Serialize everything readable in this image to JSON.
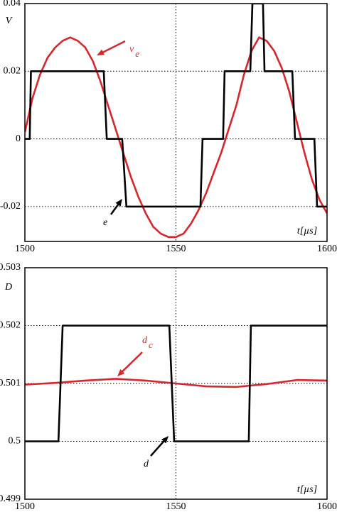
{
  "chart_data": [
    {
      "type": "line",
      "xlabel": "t[µs]",
      "ylabel": "V",
      "xlim": [
        1500,
        1600
      ],
      "xticks": [
        1500,
        1550,
        1600
      ],
      "ylim": [
        -0.0303,
        0.04
      ],
      "yticks": [
        -0.02,
        0,
        0.02,
        0.04
      ],
      "grid": true,
      "series": [
        {
          "color": "#d9262b",
          "x": [
            1500,
            1502.5,
            1505,
            1507.5,
            1510,
            1512.5,
            1515,
            1517.5,
            1520,
            1522.5,
            1525,
            1527.5,
            1530,
            1532.5,
            1535,
            1537.5,
            1540,
            1542.5,
            1545,
            1547.5,
            1550,
            1552.5,
            1555,
            1557.5,
            1560,
            1562.5,
            1565,
            1567.5,
            1570,
            1572.5,
            1575,
            1577.5,
            1580,
            1582.5,
            1585,
            1587.5,
            1590,
            1592.5,
            1595,
            1597.5,
            1600
          ],
          "values": [
            0.002,
            0.012,
            0.019,
            0.024,
            0.027,
            0.029,
            0.03,
            0.029,
            0.027,
            0.023,
            0.017,
            0.01,
            0.003,
            -0.004,
            -0.011,
            -0.017,
            -0.022,
            -0.026,
            -0.028,
            -0.029,
            -0.029,
            -0.028,
            -0.025,
            -0.021,
            -0.016,
            -0.01,
            -0.004,
            0.003,
            0.01,
            0.019,
            0.026,
            0.03,
            0.029,
            0.026,
            0.021,
            0.014,
            0.005,
            -0.004,
            -0.012,
            -0.018,
            -0.022
          ]
        },
        {
          "color": "#000000",
          "x": [
            1500,
            1501.6,
            1502.0,
            1526.1,
            1527.1,
            1532.2,
            1533.6,
            1558.1,
            1558.8,
            1565.6,
            1566.1,
            1574.6,
            1575.3,
            1578.8,
            1579.3,
            1588.5,
            1589.4,
            1595.8,
            1596.7,
            1600
          ],
          "values": [
            0,
            0,
            0.02,
            0.02,
            0,
            0,
            -0.02,
            -0.02,
            0,
            0,
            0.02,
            0.02,
            0.04,
            0.04,
            0.02,
            0.02,
            0,
            0,
            -0.02,
            -0.02
          ]
        }
      ],
      "annotations": [
        {
          "text": "v",
          "subscript": "e",
          "color": "#d9262b"
        },
        {
          "text": "e",
          "color": "#000000"
        }
      ]
    },
    {
      "type": "line",
      "xlabel": "t[µs]",
      "ylabel": "D",
      "xlim": [
        1500,
        1600
      ],
      "xticks": [
        1500,
        1550,
        1600
      ],
      "ylim": [
        0.499,
        0.503
      ],
      "yticks": [
        0.499,
        0.5,
        0.501,
        0.502,
        0.503
      ],
      "grid": true,
      "series": [
        {
          "color": "#d9262b",
          "x": [
            1500,
            1510,
            1520,
            1530,
            1540,
            1550,
            1560,
            1570,
            1580,
            1590,
            1600
          ],
          "values": [
            0.50098,
            0.50101,
            0.50105,
            0.50108,
            0.50105,
            0.501,
            0.50095,
            0.50094,
            0.50099,
            0.50106,
            0.50105
          ]
        },
        {
          "color": "#000000",
          "x": [
            1500,
            1511.1,
            1512.5,
            1547.8,
            1549.4,
            1574.1,
            1574.8,
            1600
          ],
          "values": [
            0.5,
            0.5,
            0.502,
            0.502,
            0.5,
            0.5,
            0.502,
            0.502
          ]
        }
      ],
      "annotations": [
        {
          "text": "d",
          "subscript": "c",
          "color": "#d9262b"
        },
        {
          "text": "d",
          "color": "#000000"
        }
      ]
    }
  ]
}
